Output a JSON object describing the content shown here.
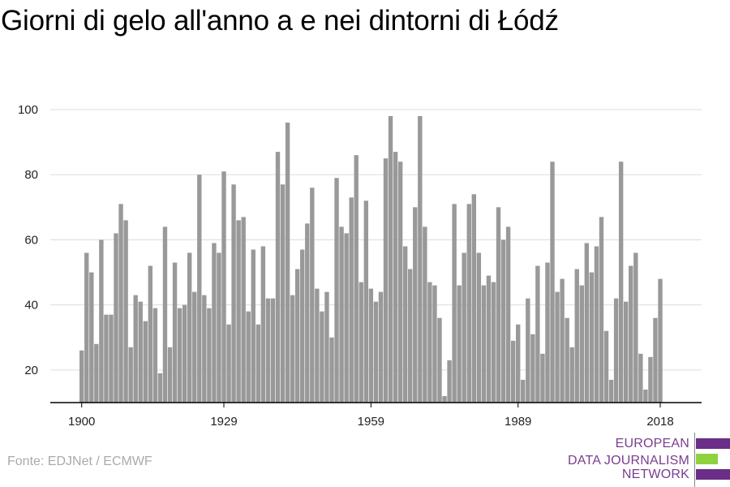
{
  "title": "Giorni di gelo all'anno a e nei dintorni di Łódź",
  "source": "Fonte: EDJNet / ECMWF",
  "logo": {
    "lines": [
      "EUROPEAN",
      "DATA JOURNALISM",
      "NETWORK"
    ],
    "colors": {
      "text": "#7a3e8f",
      "bar_purple": "#6a2e87",
      "bar_green": "#8fd13f"
    }
  },
  "colors": {
    "bar": "#999999",
    "grid": "#dddddd",
    "axis": "#000000"
  },
  "chart_data": {
    "type": "bar",
    "title": "Giorni di gelo all'anno a e nei dintorni di Łódź",
    "xlabel": "",
    "ylabel": "",
    "ylim": [
      10,
      100
    ],
    "yticks": [
      20,
      40,
      60,
      80,
      100
    ],
    "xticks": [
      1900,
      1929,
      1959,
      1989,
      2018
    ],
    "grid": true,
    "x_start": 1900,
    "values": [
      26,
      56,
      50,
      28,
      60,
      37,
      37,
      62,
      71,
      66,
      27,
      43,
      41,
      35,
      52,
      39,
      19,
      64,
      27,
      53,
      39,
      40,
      56,
      44,
      80,
      43,
      39,
      59,
      56,
      81,
      34,
      77,
      66,
      67,
      38,
      57,
      34,
      58,
      42,
      42,
      87,
      77,
      96,
      43,
      51,
      57,
      65,
      76,
      45,
      38,
      44,
      30,
      79,
      64,
      62,
      73,
      86,
      47,
      72,
      45,
      41,
      44,
      85,
      98,
      87,
      84,
      58,
      51,
      70,
      98,
      64,
      47,
      46,
      36,
      12,
      23,
      71,
      46,
      56,
      71,
      74,
      56,
      46,
      49,
      47,
      70,
      60,
      64,
      29,
      34,
      17,
      42,
      31,
      52,
      25,
      53,
      84,
      44,
      48,
      36,
      27,
      51,
      46,
      59,
      50,
      58,
      67,
      32,
      17,
      42,
      84,
      41,
      52,
      56,
      25,
      14,
      24,
      36,
      48
    ]
  }
}
